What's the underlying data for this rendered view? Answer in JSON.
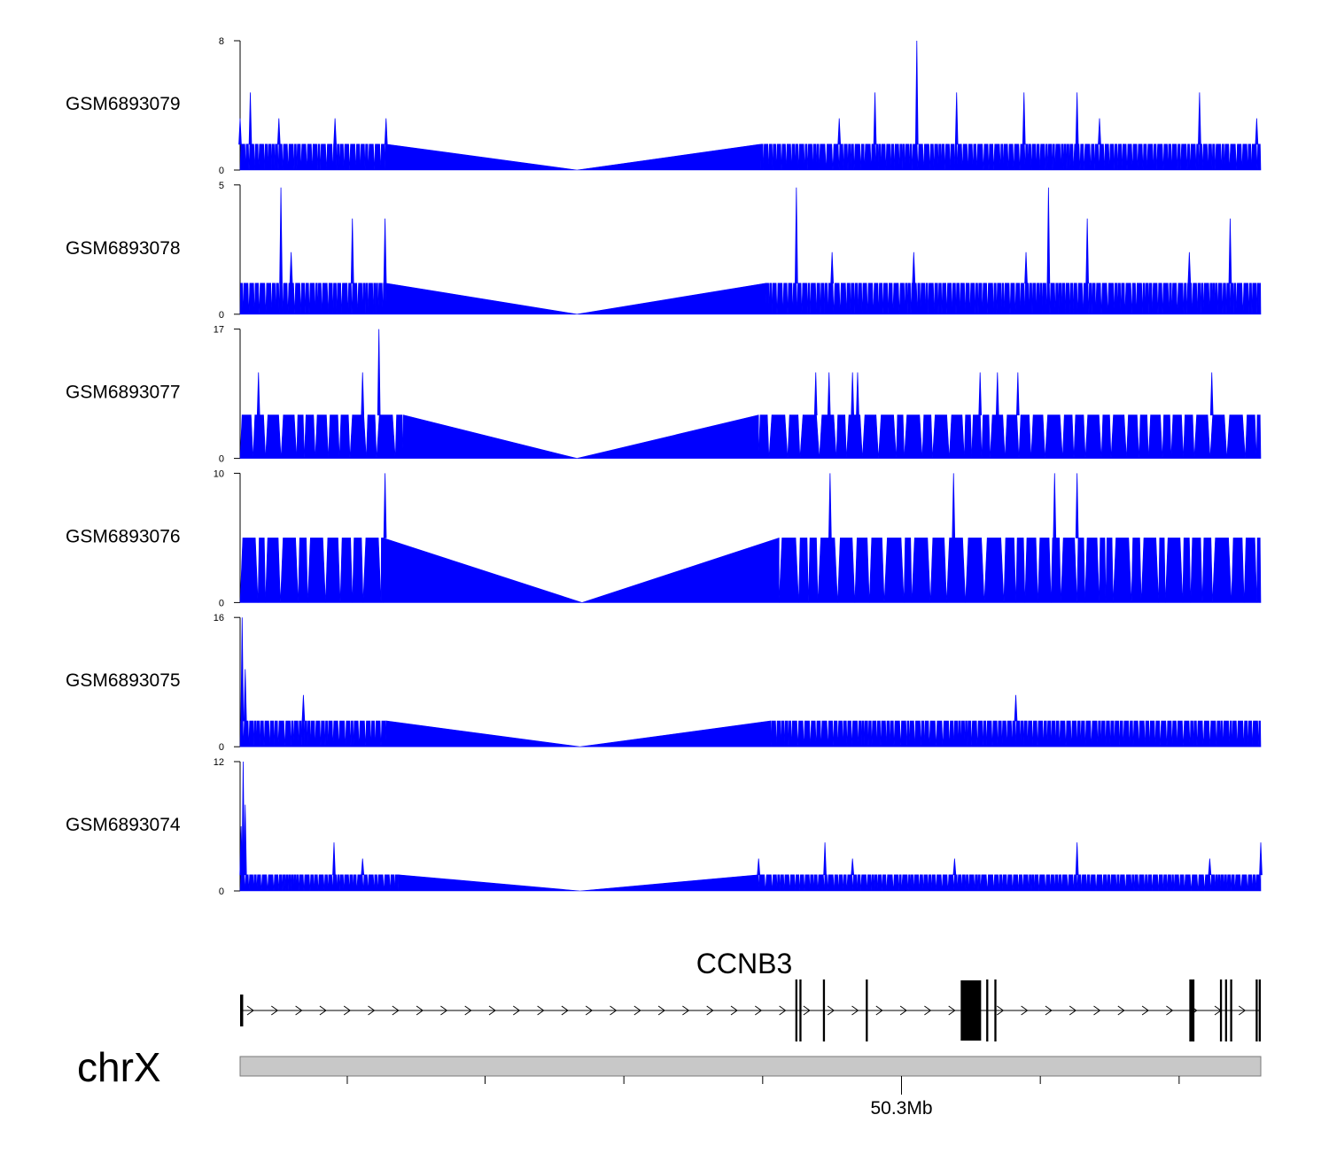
{
  "chart_data": {
    "type": "area",
    "title": "",
    "fill_color": "#0000ff",
    "tracks": [
      {
        "name": "GSM6893079",
        "ymax": 8,
        "ymin": 0,
        "baseline": 1.6,
        "gap_start": 0.143,
        "gap_mid": 0.33,
        "gap_end": 0.51,
        "peaks": [
          {
            "x": 0.0,
            "y": 3.2
          },
          {
            "x": 0.01,
            "y": 4.8
          },
          {
            "x": 0.038,
            "y": 3.2
          },
          {
            "x": 0.093,
            "y": 3.2
          },
          {
            "x": 0.143,
            "y": 3.2
          },
          {
            "x": 0.587,
            "y": 3.2
          },
          {
            "x": 0.622,
            "y": 4.8
          },
          {
            "x": 0.663,
            "y": 8.0
          },
          {
            "x": 0.702,
            "y": 4.8
          },
          {
            "x": 0.768,
            "y": 4.8
          },
          {
            "x": 0.82,
            "y": 4.8
          },
          {
            "x": 0.842,
            "y": 3.2
          },
          {
            "x": 0.94,
            "y": 4.8
          },
          {
            "x": 0.996,
            "y": 3.2
          }
        ]
      },
      {
        "name": "GSM6893078",
        "ymax": 5,
        "ymin": 0,
        "baseline": 1.2,
        "gap_start": 0.143,
        "gap_mid": 0.33,
        "gap_end": 0.515,
        "peaks": [
          {
            "x": 0.04,
            "y": 4.9
          },
          {
            "x": 0.05,
            "y": 2.4
          },
          {
            "x": 0.11,
            "y": 3.7
          },
          {
            "x": 0.142,
            "y": 3.7
          },
          {
            "x": 0.545,
            "y": 4.9
          },
          {
            "x": 0.58,
            "y": 2.4
          },
          {
            "x": 0.66,
            "y": 2.4
          },
          {
            "x": 0.77,
            "y": 2.4
          },
          {
            "x": 0.792,
            "y": 4.9
          },
          {
            "x": 0.83,
            "y": 3.7
          },
          {
            "x": 0.93,
            "y": 2.4
          },
          {
            "x": 0.97,
            "y": 3.7
          }
        ]
      },
      {
        "name": "GSM6893077",
        "ymax": 17,
        "ymin": 0,
        "baseline": 5.7,
        "gap_start": 0.16,
        "gap_mid": 0.33,
        "gap_end": 0.508,
        "peaks": [
          {
            "x": 0.018,
            "y": 11.3
          },
          {
            "x": 0.12,
            "y": 11.3
          },
          {
            "x": 0.136,
            "y": 17.0
          },
          {
            "x": 0.564,
            "y": 11.3
          },
          {
            "x": 0.577,
            "y": 11.3
          },
          {
            "x": 0.6,
            "y": 11.3
          },
          {
            "x": 0.605,
            "y": 11.3
          },
          {
            "x": 0.725,
            "y": 11.3
          },
          {
            "x": 0.742,
            "y": 11.3
          },
          {
            "x": 0.762,
            "y": 11.3
          },
          {
            "x": 0.952,
            "y": 11.3
          }
        ]
      },
      {
        "name": "GSM6893076",
        "ymax": 10,
        "ymin": 0,
        "baseline": 5.0,
        "gap_start": 0.14,
        "gap_mid": 0.335,
        "gap_end": 0.528,
        "peaks": [
          {
            "x": 0.142,
            "y": 10.0
          },
          {
            "x": 0.578,
            "y": 10.0
          },
          {
            "x": 0.699,
            "y": 10.0
          },
          {
            "x": 0.798,
            "y": 10.0
          },
          {
            "x": 0.82,
            "y": 10.0
          }
        ]
      },
      {
        "name": "GSM6893075",
        "ymax": 16,
        "ymin": 0,
        "baseline": 3.2,
        "gap_start": 0.143,
        "gap_mid": 0.333,
        "gap_end": 0.52,
        "peaks": [
          {
            "x": 0.002,
            "y": 16.0
          },
          {
            "x": 0.005,
            "y": 9.6
          },
          {
            "x": 0.062,
            "y": 6.4
          },
          {
            "x": 0.76,
            "y": 6.4
          }
        ]
      },
      {
        "name": "GSM6893074",
        "ymax": 12,
        "ymin": 0,
        "baseline": 1.5,
        "gap_start": 0.155,
        "gap_mid": 0.333,
        "gap_end": 0.508,
        "peaks": [
          {
            "x": 0.001,
            "y": 6.0
          },
          {
            "x": 0.003,
            "y": 12.0
          },
          {
            "x": 0.005,
            "y": 8.0
          },
          {
            "x": 0.092,
            "y": 4.5
          },
          {
            "x": 0.12,
            "y": 3.0
          },
          {
            "x": 0.508,
            "y": 3.0
          },
          {
            "x": 0.573,
            "y": 4.5
          },
          {
            "x": 0.6,
            "y": 3.0
          },
          {
            "x": 0.7,
            "y": 3.0
          },
          {
            "x": 0.82,
            "y": 4.5
          },
          {
            "x": 0.95,
            "y": 3.0
          },
          {
            "x": 1.0,
            "y": 4.5
          }
        ]
      }
    ],
    "gene": {
      "name": "CCNB3",
      "strand": "+",
      "exons": [
        {
          "start": 0.0,
          "end": 0.003
        },
        {
          "start": 0.544,
          "end": 0.546
        },
        {
          "start": 0.548,
          "end": 0.55
        },
        {
          "start": 0.571,
          "end": 0.573
        },
        {
          "start": 0.613,
          "end": 0.615
        },
        {
          "start": 0.706,
          "end": 0.726
        },
        {
          "start": 0.731,
          "end": 0.733
        },
        {
          "start": 0.739,
          "end": 0.741
        },
        {
          "start": 0.93,
          "end": 0.935
        },
        {
          "start": 0.96,
          "end": 0.962
        },
        {
          "start": 0.965,
          "end": 0.967
        },
        {
          "start": 0.97,
          "end": 0.972
        },
        {
          "start": 0.995,
          "end": 0.997
        },
        {
          "start": 0.998,
          "end": 1.0
        }
      ]
    },
    "chromosome": "chrX",
    "axis_ticks": [
      0.105,
      0.24,
      0.376,
      0.512,
      0.648,
      0.784,
      0.92
    ],
    "axis_label": {
      "text": "50.3Mb",
      "tick_index": 4
    }
  }
}
